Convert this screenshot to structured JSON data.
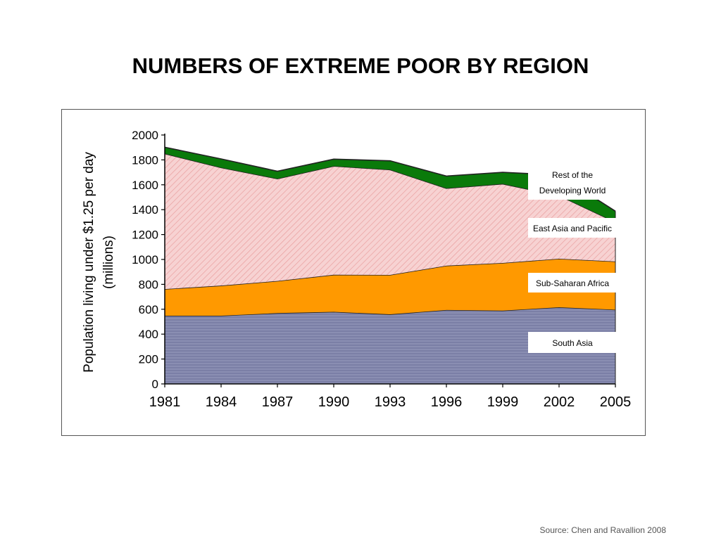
{
  "slide": {
    "title": "NUMBERS OF EXTREME POOR BY REGION",
    "source": "Source: Chen and Ravallion 2008"
  },
  "chart_data": {
    "type": "area",
    "stacked": true,
    "title": "NUMBERS OF EXTREME POOR BY REGION",
    "xlabel": "",
    "ylabel_lines": [
      "Population living under $1.25 per day",
      "(millions)"
    ],
    "x": [
      "1981",
      "1984",
      "1987",
      "1990",
      "1993",
      "1996",
      "1999",
      "2002",
      "2005"
    ],
    "ylim": [
      0,
      2000
    ],
    "yticks": [
      0,
      200,
      400,
      600,
      800,
      1000,
      1200,
      1400,
      1600,
      1800,
      2000
    ],
    "grid": false,
    "legend": "inline labels on right",
    "series": [
      {
        "name": "South Asia",
        "values": [
          548,
          548,
          569,
          579,
          559,
          594,
          589,
          616,
          596
        ],
        "color": "#7b7fa6"
      },
      {
        "name": "Sub-Saharan Africa",
        "values": [
          214,
          242,
          258,
          298,
          317,
          356,
          383,
          390,
          388
        ],
        "color": "#ff9900"
      },
      {
        "name": "East Asia and Pacific",
        "values": [
          1088,
          948,
          822,
          873,
          845,
          622,
          635,
          507,
          316
        ],
        "color": "#f5c8c8"
      },
      {
        "name": "Rest of the Developing World",
        "values": [
          52,
          70,
          60,
          56,
          72,
          98,
          93,
          165,
          88
        ],
        "color": "#0a7a0a"
      }
    ],
    "labels": [
      "Rest of the\nDeveloping World",
      "East Asia and Pacific",
      "Sub-Saharan Africa",
      "South Asia"
    ]
  }
}
